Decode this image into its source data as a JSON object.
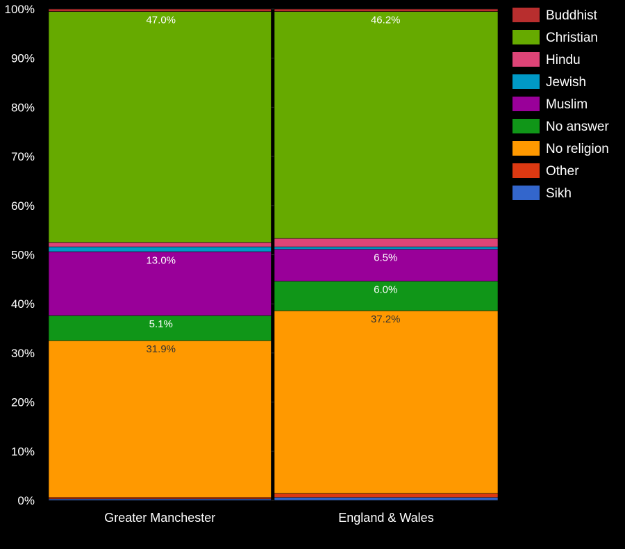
{
  "chart_data": {
    "type": "bar",
    "stacked": true,
    "title": "",
    "xlabel": "",
    "ylabel": "",
    "ylim": [
      0,
      100
    ],
    "y_ticks": [
      "0%",
      "10%",
      "20%",
      "30%",
      "40%",
      "50%",
      "60%",
      "70%",
      "80%",
      "90%",
      "100%"
    ],
    "grid": true,
    "legend_position": "right",
    "categories": [
      "Greater Manchester",
      "England & Wales"
    ],
    "series": [
      {
        "name": "Sikh",
        "color": "#3366cc",
        "values": [
          0.3,
          0.6
        ]
      },
      {
        "name": "Other",
        "color": "#dc3912",
        "values": [
          0.3,
          0.8
        ]
      },
      {
        "name": "No religion",
        "color": "#ff9900",
        "values": [
          31.9,
          37.2
        ]
      },
      {
        "name": "No answer",
        "color": "#109618",
        "values": [
          5.1,
          6.0
        ]
      },
      {
        "name": "Muslim",
        "color": "#990099",
        "values": [
          13.0,
          6.5
        ]
      },
      {
        "name": "Jewish",
        "color": "#0099c6",
        "values": [
          1.0,
          0.5
        ]
      },
      {
        "name": "Hindu",
        "color": "#dd4477",
        "values": [
          0.9,
          1.7
        ]
      },
      {
        "name": "Christian",
        "color": "#66aa00",
        "values": [
          47.0,
          46.2
        ]
      },
      {
        "name": "Buddhist",
        "color": "#b82e2e",
        "values": [
          0.5,
          0.5
        ]
      }
    ],
    "legend_order": [
      "Buddhist",
      "Christian",
      "Hindu",
      "Jewish",
      "Muslim",
      "No answer",
      "No religion",
      "Other",
      "Sikh"
    ],
    "data_labels": [
      {
        "category": "Greater Manchester",
        "series": "Christian",
        "text": "47.0%"
      },
      {
        "category": "Greater Manchester",
        "series": "Muslim",
        "text": "13.0%"
      },
      {
        "category": "Greater Manchester",
        "series": "No answer",
        "text": "5.1%"
      },
      {
        "category": "Greater Manchester",
        "series": "No religion",
        "text": "31.9%"
      },
      {
        "category": "England & Wales",
        "series": "Christian",
        "text": "46.2%"
      },
      {
        "category": "England & Wales",
        "series": "Muslim",
        "text": "6.5%"
      },
      {
        "category": "England & Wales",
        "series": "No answer",
        "text": "6.0%"
      },
      {
        "category": "England & Wales",
        "series": "No religion",
        "text": "37.2%"
      }
    ],
    "label_colors": {
      "Christian": "#ffffff",
      "Muslim": "#ffffff",
      "No answer": "#ffffff",
      "No religion": "#333333"
    }
  }
}
